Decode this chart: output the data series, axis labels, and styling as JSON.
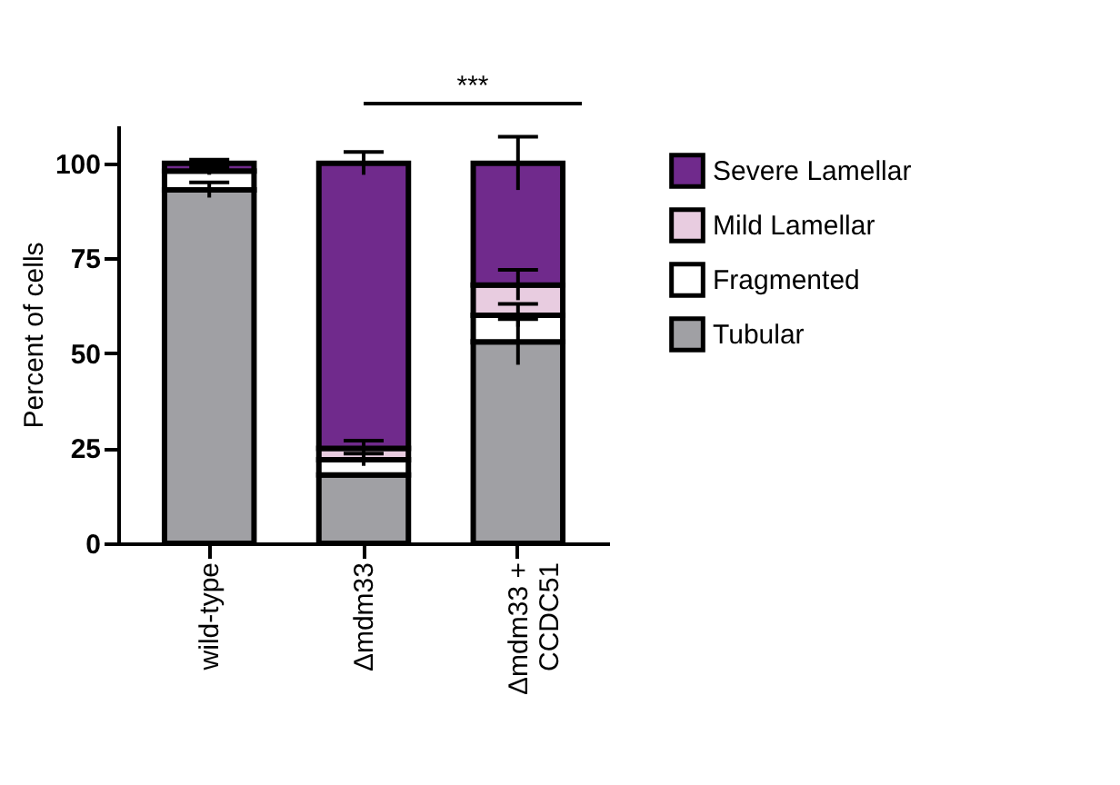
{
  "chart_data": {
    "type": "bar",
    "stacked": true,
    "ylabel": "Percent of cells",
    "categories": [
      "wild-type",
      "Δmdm33",
      "Δmdm33 + CCDC51"
    ],
    "series": [
      {
        "name": "Tubular",
        "color": "#a0a0a4",
        "values": [
          93,
          18,
          53
        ],
        "errors": [
          2,
          null,
          6
        ]
      },
      {
        "name": "Fragmented",
        "color": "#ffffff",
        "values": [
          5,
          4,
          7
        ],
        "errors": [
          1,
          1.6,
          3
        ]
      },
      {
        "name": "Mild Lamellar",
        "color": "#e8cce0",
        "values": [
          null,
          3,
          8
        ],
        "errors": [
          null,
          2,
          4
        ]
      },
      {
        "name": "Severe Lamellar",
        "color": "#702a8c",
        "values": [
          2,
          75,
          32
        ],
        "errors": [
          1,
          3,
          7
        ]
      }
    ],
    "ylim": [
      0,
      110
    ],
    "yticks": [
      0,
      25,
      50,
      75,
      100
    ],
    "grid": false,
    "legend": "right",
    "annotations": [
      "***"
    ]
  }
}
